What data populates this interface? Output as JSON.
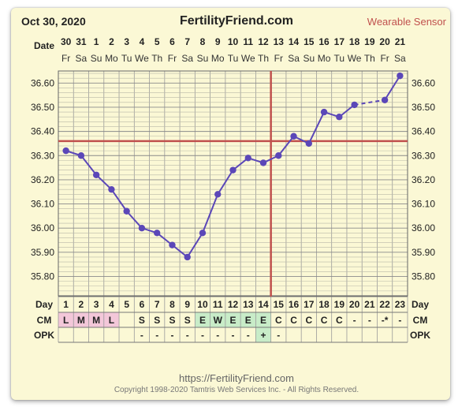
{
  "header": {
    "date": "Oct 30, 2020",
    "site": "FertilityFriend.com",
    "sensor_label": "Wearable Sensor"
  },
  "footer": {
    "url": "https://FertilityFriend.com",
    "copyright": "Copyright 1998-2020 Tamtris Web Services Inc. - All Rights Reserved."
  },
  "colors": {
    "line": "#5b47b8",
    "coverline": "#c0504d",
    "ovulation": "#c0504d",
    "grid": "#9a9a9a",
    "panel": "#fbf8d5",
    "cm_pink": "#f3c7d9",
    "cm_green": "#c8ecc8"
  },
  "chart_data": {
    "type": "line",
    "title": "",
    "row_labels": {
      "date": "Date",
      "day": "Day",
      "cm": "CM",
      "opk": "OPK"
    },
    "dates": [
      "30",
      "31",
      "1",
      "2",
      "3",
      "4",
      "5",
      "6",
      "7",
      "8",
      "9",
      "10",
      "11",
      "12",
      "13",
      "14",
      "15",
      "16",
      "17",
      "18",
      "19",
      "20",
      "21"
    ],
    "weekdays": [
      "Fr",
      "Sa",
      "Su",
      "Mo",
      "Tu",
      "We",
      "Th",
      "Fr",
      "Sa",
      "Su",
      "Mo",
      "Tu",
      "We",
      "Th",
      "Fr",
      "Sa",
      "Su",
      "Mo",
      "Tu",
      "We",
      "Th",
      "Fr",
      "Sa"
    ],
    "cycle_days": [
      "1",
      "2",
      "3",
      "4",
      "5",
      "6",
      "7",
      "8",
      "9",
      "10",
      "11",
      "12",
      "13",
      "14",
      "15",
      "16",
      "17",
      "18",
      "19",
      "20",
      "21",
      "22",
      "23"
    ],
    "cm": [
      "L",
      "M",
      "M",
      "L",
      "",
      "S",
      "S",
      "S",
      "S",
      "E",
      "W",
      "E",
      "E",
      "E",
      "C",
      "C",
      "C",
      "C",
      "C",
      "-",
      "-",
      "-*",
      "-"
    ],
    "opk": [
      "",
      "",
      "",
      "",
      "",
      "-",
      "-",
      "-",
      "-",
      "-",
      "-",
      "-",
      "-",
      "+",
      "-",
      "",
      "",
      "",
      "",
      "",
      "",
      "",
      ""
    ],
    "highlights": {
      "pink_days": [
        1,
        2,
        3,
        4
      ],
      "green_days": [
        10,
        11,
        12,
        13,
        14
      ],
      "opk_positive_day": 14
    },
    "temperatures": [
      36.32,
      36.3,
      36.22,
      36.16,
      36.07,
      36.0,
      35.98,
      35.93,
      35.88,
      35.98,
      36.14,
      36.24,
      36.29,
      36.27,
      36.3,
      36.38,
      36.35,
      36.48,
      36.46,
      36.51,
      null,
      36.53,
      36.63
    ],
    "dashed_from_day": 20,
    "y_ticks": [
      "36.60",
      "36.50",
      "36.40",
      "36.30",
      "36.20",
      "36.10",
      "36.00",
      "35.90",
      "35.80"
    ],
    "ylim": [
      35.72,
      36.65
    ],
    "coverline": 36.36,
    "ovulation_day": 15
  }
}
